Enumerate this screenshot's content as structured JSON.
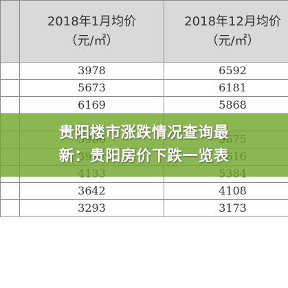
{
  "table": {
    "headers": [
      {
        "line1": "2018年1月均价",
        "line2": "（元/㎡）"
      },
      {
        "line1": "2018年12月均价",
        "line2": "（元/㎡）"
      }
    ],
    "rows": [
      [
        "3978",
        "6592"
      ],
      [
        "5673",
        "6181"
      ],
      [
        "6169",
        "5868"
      ],
      [
        "",
        ""
      ],
      [
        "3986",
        "5675"
      ],
      [
        "3987",
        "5616"
      ],
      [
        "4133",
        "5384"
      ],
      [
        "3642",
        "4108"
      ],
      [
        "3293",
        "3173"
      ]
    ]
  },
  "banner": {
    "line1": "贵阳楼市涨跌情况查询最",
    "line2": "新：贵阳房价下跌一览表"
  },
  "colors": {
    "header_bg": "#d9d9d9",
    "border": "#8c8c8c",
    "banner_green": "#6ea528"
  }
}
